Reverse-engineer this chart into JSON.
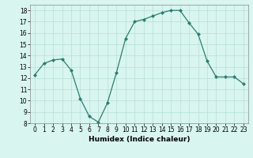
{
  "x": [
    0,
    1,
    2,
    3,
    4,
    5,
    6,
    7,
    8,
    9,
    10,
    11,
    12,
    13,
    14,
    15,
    16,
    17,
    18,
    19,
    20,
    21,
    22,
    23
  ],
  "y": [
    12.3,
    13.3,
    13.6,
    13.7,
    12.7,
    10.2,
    8.6,
    8.1,
    9.8,
    12.5,
    15.5,
    17.0,
    17.2,
    17.5,
    17.8,
    18.0,
    18.0,
    16.9,
    15.9,
    13.5,
    12.1,
    12.1,
    12.1,
    11.5
  ],
  "line_color": "#2e7d6e",
  "marker": "D",
  "marker_size": 2,
  "bg_color": "#d8f5f0",
  "grid_color": "#b8ddd8",
  "xlabel": "Humidex (Indice chaleur)",
  "xlim": [
    -0.5,
    23.5
  ],
  "ylim": [
    8,
    18.5
  ],
  "yticks": [
    8,
    9,
    10,
    11,
    12,
    13,
    14,
    15,
    16,
    17,
    18
  ],
  "xticks": [
    0,
    1,
    2,
    3,
    4,
    5,
    6,
    7,
    8,
    9,
    10,
    11,
    12,
    13,
    14,
    15,
    16,
    17,
    18,
    19,
    20,
    21,
    22,
    23
  ],
  "label_fontsize": 6.5,
  "tick_fontsize": 5.5
}
